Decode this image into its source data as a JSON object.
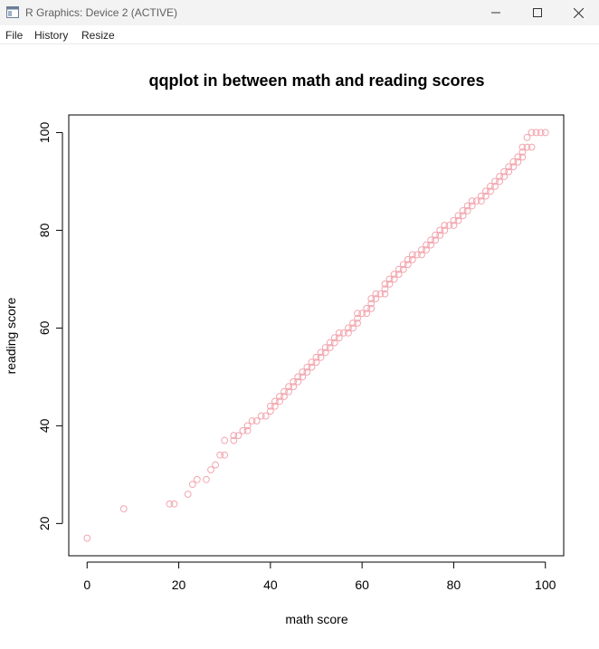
{
  "window": {
    "title": "R Graphics: Device 2 (ACTIVE)",
    "icons": [
      "app-icon",
      "minimize-icon",
      "maximize-icon",
      "close-icon"
    ]
  },
  "menu": {
    "items": [
      "File",
      "History",
      "Resize"
    ]
  },
  "colors": {
    "points": "#f2a5ae",
    "axis": "#000000",
    "background": "#ffffff"
  },
  "chart_data": {
    "type": "scatter",
    "title": "qqplot in between math and reading scores",
    "xlabel": "math score",
    "ylabel": "reading score",
    "xlim": [
      -4,
      104
    ],
    "ylim": [
      13.4,
      103.6
    ],
    "xticks": [
      0,
      20,
      40,
      60,
      80,
      100
    ],
    "yticks": [
      20,
      40,
      60,
      80,
      100
    ],
    "grid": false,
    "marker": "open-circle",
    "points": [
      [
        0,
        17
      ],
      [
        8,
        23
      ],
      [
        18,
        24
      ],
      [
        19,
        24
      ],
      [
        22,
        26
      ],
      [
        23,
        28
      ],
      [
        24,
        29
      ],
      [
        26,
        29
      ],
      [
        27,
        31
      ],
      [
        28,
        32
      ],
      [
        29,
        34
      ],
      [
        30,
        34
      ],
      [
        30,
        37
      ],
      [
        32,
        37
      ],
      [
        32,
        38
      ],
      [
        33,
        38
      ],
      [
        34,
        39
      ],
      [
        35,
        39
      ],
      [
        35,
        40
      ],
      [
        36,
        41
      ],
      [
        37,
        41
      ],
      [
        38,
        42
      ],
      [
        39,
        42
      ],
      [
        40,
        43
      ],
      [
        40,
        44
      ],
      [
        41,
        44
      ],
      [
        41,
        45
      ],
      [
        42,
        45
      ],
      [
        42,
        46
      ],
      [
        43,
        46
      ],
      [
        43,
        47
      ],
      [
        44,
        47
      ],
      [
        44,
        48
      ],
      [
        45,
        48
      ],
      [
        45,
        49
      ],
      [
        46,
        49
      ],
      [
        46,
        50
      ],
      [
        47,
        50
      ],
      [
        47,
        51
      ],
      [
        48,
        51
      ],
      [
        48,
        52
      ],
      [
        49,
        52
      ],
      [
        49,
        53
      ],
      [
        50,
        53
      ],
      [
        50,
        54
      ],
      [
        51,
        54
      ],
      [
        51,
        55
      ],
      [
        52,
        55
      ],
      [
        52,
        56
      ],
      [
        53,
        56
      ],
      [
        53,
        57
      ],
      [
        54,
        57
      ],
      [
        54,
        58
      ],
      [
        55,
        58
      ],
      [
        55,
        59
      ],
      [
        56,
        59
      ],
      [
        57,
        59
      ],
      [
        57,
        60
      ],
      [
        58,
        60
      ],
      [
        58,
        61
      ],
      [
        59,
        61
      ],
      [
        59,
        62
      ],
      [
        59,
        63
      ],
      [
        60,
        63
      ],
      [
        61,
        63
      ],
      [
        61,
        64
      ],
      [
        62,
        64
      ],
      [
        62,
        65
      ],
      [
        62,
        66
      ],
      [
        63,
        66
      ],
      [
        63,
        67
      ],
      [
        64,
        67
      ],
      [
        65,
        67
      ],
      [
        65,
        68
      ],
      [
        65,
        69
      ],
      [
        66,
        69
      ],
      [
        66,
        70
      ],
      [
        67,
        70
      ],
      [
        67,
        71
      ],
      [
        68,
        71
      ],
      [
        68,
        72
      ],
      [
        69,
        72
      ],
      [
        69,
        73
      ],
      [
        70,
        73
      ],
      [
        70,
        74
      ],
      [
        71,
        74
      ],
      [
        71,
        75
      ],
      [
        72,
        75
      ],
      [
        73,
        75
      ],
      [
        73,
        76
      ],
      [
        74,
        76
      ],
      [
        74,
        77
      ],
      [
        75,
        77
      ],
      [
        75,
        78
      ],
      [
        76,
        78
      ],
      [
        76,
        79
      ],
      [
        77,
        79
      ],
      [
        77,
        80
      ],
      [
        78,
        80
      ],
      [
        78,
        81
      ],
      [
        79,
        81
      ],
      [
        80,
        81
      ],
      [
        80,
        82
      ],
      [
        81,
        82
      ],
      [
        81,
        83
      ],
      [
        82,
        83
      ],
      [
        82,
        84
      ],
      [
        83,
        84
      ],
      [
        83,
        85
      ],
      [
        84,
        85
      ],
      [
        84,
        86
      ],
      [
        85,
        86
      ],
      [
        86,
        86
      ],
      [
        86,
        87
      ],
      [
        87,
        87
      ],
      [
        87,
        88
      ],
      [
        88,
        88
      ],
      [
        88,
        89
      ],
      [
        89,
        89
      ],
      [
        89,
        90
      ],
      [
        90,
        90
      ],
      [
        90,
        91
      ],
      [
        91,
        91
      ],
      [
        91,
        92
      ],
      [
        92,
        92
      ],
      [
        92,
        93
      ],
      [
        93,
        93
      ],
      [
        93,
        94
      ],
      [
        94,
        94
      ],
      [
        94,
        95
      ],
      [
        95,
        95
      ],
      [
        95,
        96
      ],
      [
        95,
        97
      ],
      [
        96,
        97
      ],
      [
        96,
        99
      ],
      [
        97,
        97
      ],
      [
        97,
        100
      ],
      [
        98,
        100
      ],
      [
        99,
        100
      ],
      [
        100,
        100
      ]
    ]
  }
}
